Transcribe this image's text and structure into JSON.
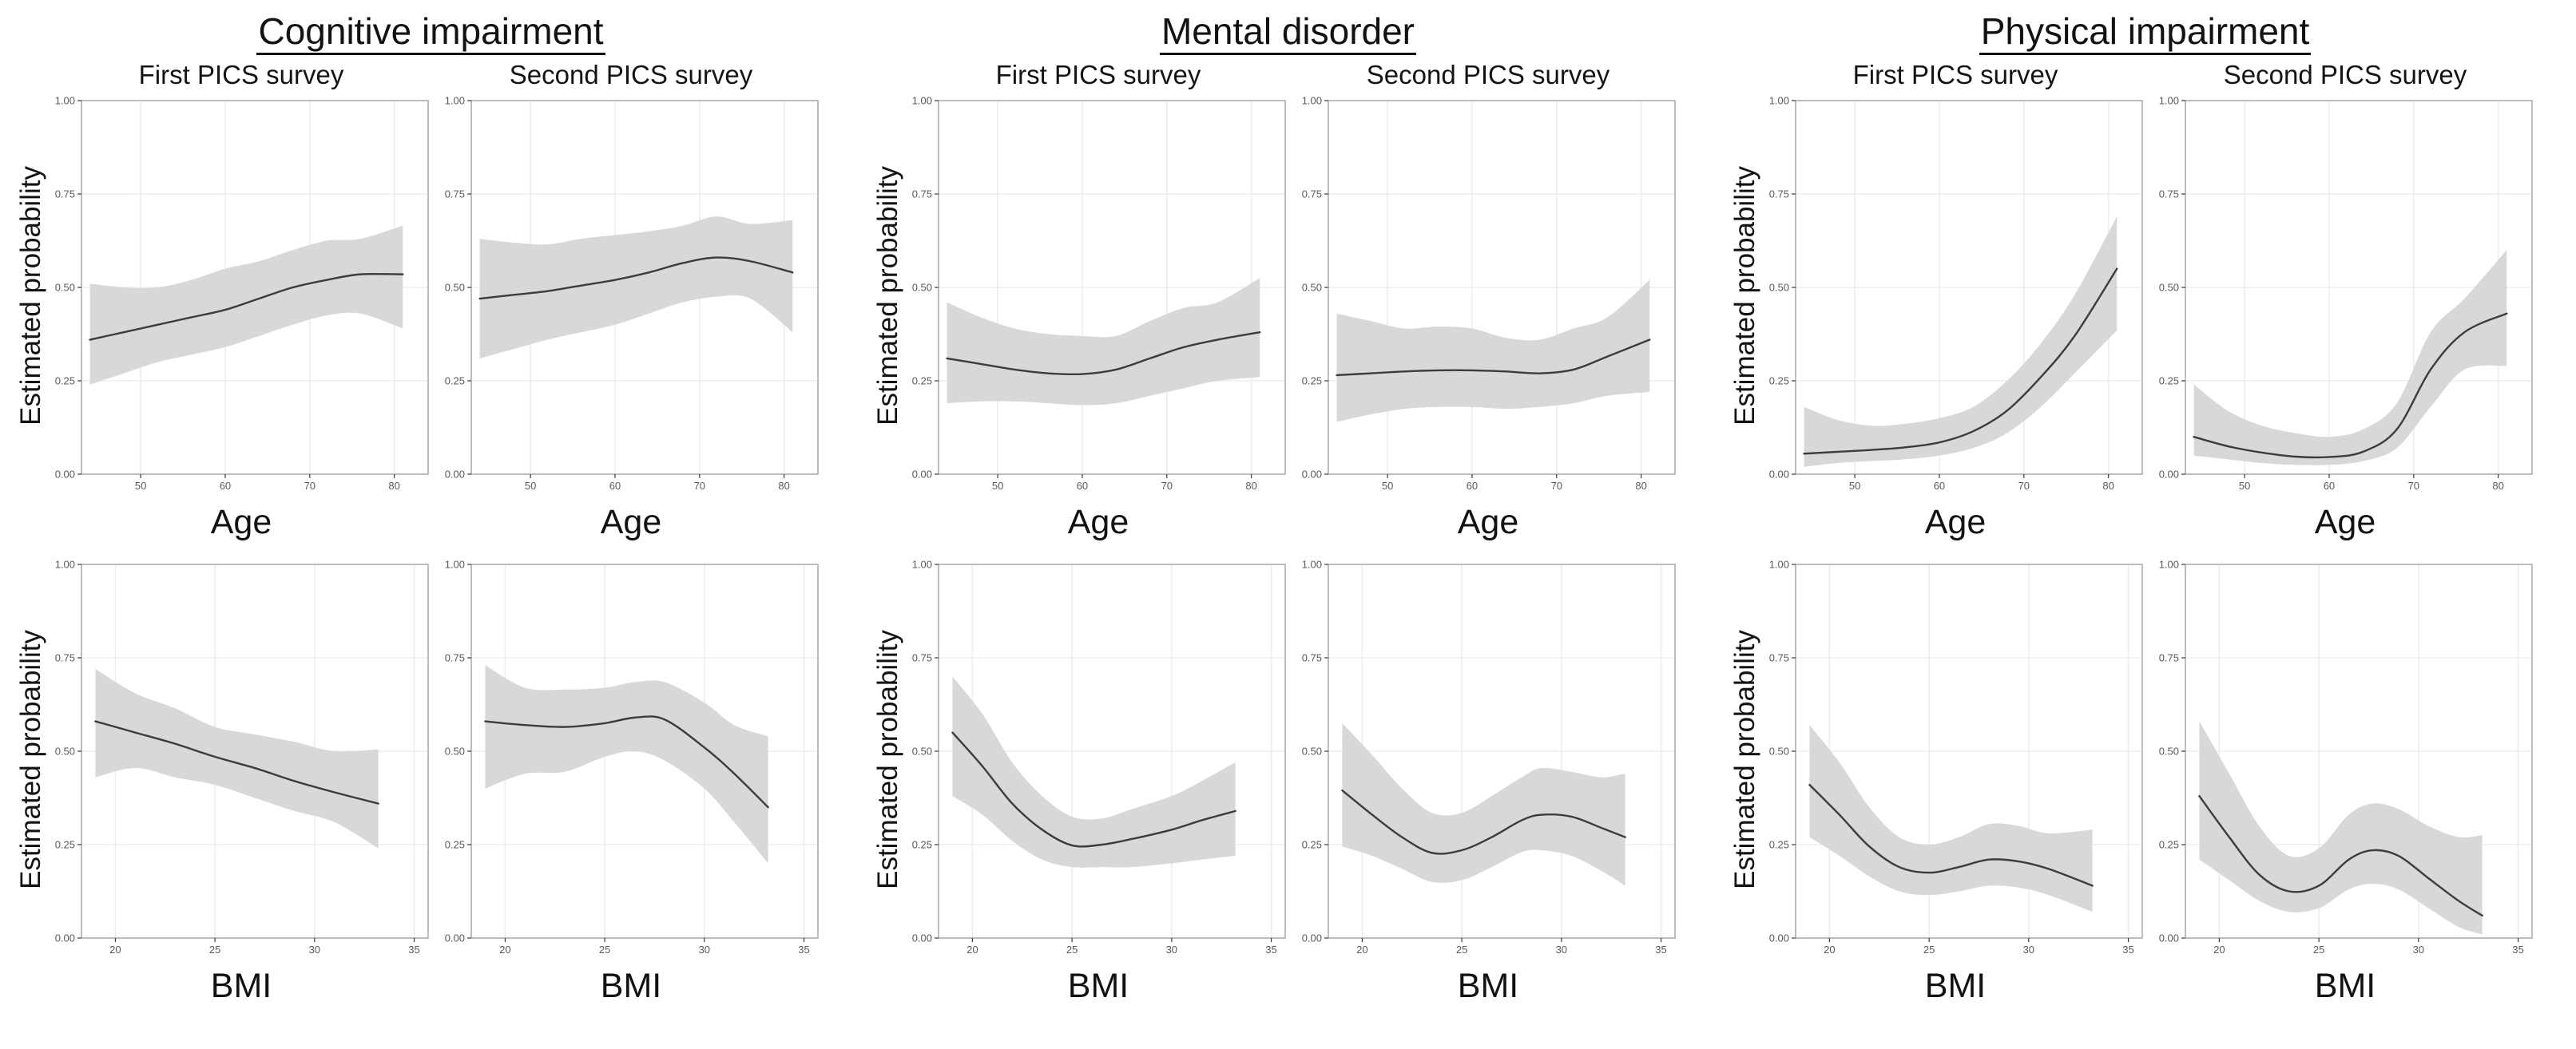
{
  "chart_data": {
    "type": "line",
    "description": "Smoothed estimated probability curves with gray confidence bands, 3 outcome groups x 2 surveys x 2 predictors",
    "y_axis": {
      "label": "Estimated probability",
      "range": [
        0,
        1
      ],
      "ticks": [
        0,
        0.25,
        0.5,
        0.75,
        1
      ],
      "tick_labels": [
        "0.00",
        "0.25",
        "0.50",
        "0.75",
        "1.00"
      ]
    },
    "age_axis": {
      "label": "Age",
      "range": [
        43,
        84
      ],
      "ticks": [
        50,
        60,
        70,
        80
      ]
    },
    "bmi_axis": {
      "label": "BMI",
      "range": [
        18.3,
        35.7
      ],
      "ticks": [
        20,
        25,
        30,
        35
      ]
    },
    "style": {
      "band_color": "#d8d8d8",
      "line_color": "#3c3c3c",
      "grid_color": "#ededed",
      "frame_color": "#a3a3a3",
      "tick_color": "#3a3a3a",
      "tick_label_color": "#5a5a5a",
      "panel_bg": "#ffffff"
    },
    "groups": [
      {
        "title": "Cognitive impairment",
        "surveys": [
          "First PICS survey",
          "Second PICS survey"
        ],
        "age": [
          {
            "x": [
              44,
              48,
              52,
              56,
              60,
              64,
              68,
              72,
              76,
              81
            ],
            "y": [
              0.36,
              0.38,
              0.4,
              0.42,
              0.44,
              0.47,
              0.5,
              0.52,
              0.535,
              0.535
            ],
            "lo": [
              0.24,
              0.27,
              0.3,
              0.32,
              0.34,
              0.37,
              0.4,
              0.425,
              0.43,
              0.39
            ],
            "hi": [
              0.51,
              0.5,
              0.5,
              0.52,
              0.55,
              0.57,
              0.6,
              0.625,
              0.63,
              0.665
            ]
          },
          {
            "x": [
              44,
              48,
              52,
              56,
              60,
              64,
              68,
              72,
              76,
              81
            ],
            "y": [
              0.47,
              0.48,
              0.49,
              0.505,
              0.52,
              0.54,
              0.565,
              0.58,
              0.57,
              0.54
            ],
            "lo": [
              0.31,
              0.335,
              0.36,
              0.38,
              0.4,
              0.43,
              0.46,
              0.475,
              0.47,
              0.38
            ],
            "hi": [
              0.63,
              0.62,
              0.615,
              0.63,
              0.64,
              0.65,
              0.665,
              0.69,
              0.67,
              0.68
            ]
          }
        ],
        "bmi": [
          {
            "x": [
              19,
              21,
              23,
              25,
              27,
              29,
              31,
              33.2
            ],
            "y": [
              0.58,
              0.55,
              0.52,
              0.485,
              0.455,
              0.42,
              0.39,
              0.36
            ],
            "lo": [
              0.43,
              0.455,
              0.43,
              0.41,
              0.375,
              0.34,
              0.31,
              0.24
            ],
            "hi": [
              0.72,
              0.655,
              0.615,
              0.565,
              0.545,
              0.525,
              0.5,
              0.505
            ]
          },
          {
            "x": [
              19,
              21,
              23,
              25,
              26.5,
              28,
              30,
              31.5,
              33.2
            ],
            "y": [
              0.58,
              0.57,
              0.565,
              0.575,
              0.59,
              0.585,
              0.51,
              0.44,
              0.35
            ],
            "lo": [
              0.4,
              0.44,
              0.445,
              0.485,
              0.5,
              0.475,
              0.4,
              0.31,
              0.2
            ],
            "hi": [
              0.73,
              0.67,
              0.665,
              0.67,
              0.685,
              0.685,
              0.63,
              0.57,
              0.54
            ]
          }
        ]
      },
      {
        "title": "Mental disorder",
        "surveys": [
          "First PICS survey",
          "Second PICS survey"
        ],
        "age": [
          {
            "x": [
              44,
              48,
              52,
              56,
              60,
              64,
              68,
              72,
              76,
              81
            ],
            "y": [
              0.31,
              0.295,
              0.28,
              0.27,
              0.268,
              0.28,
              0.31,
              0.34,
              0.36,
              0.38
            ],
            "lo": [
              0.19,
              0.195,
              0.195,
              0.19,
              0.185,
              0.19,
              0.21,
              0.23,
              0.25,
              0.26
            ],
            "hi": [
              0.46,
              0.42,
              0.39,
              0.375,
              0.37,
              0.37,
              0.41,
              0.445,
              0.46,
              0.525
            ]
          },
          {
            "x": [
              44,
              48,
              52,
              56,
              60,
              64,
              68,
              72,
              76,
              81
            ],
            "y": [
              0.265,
              0.27,
              0.275,
              0.278,
              0.278,
              0.275,
              0.27,
              0.28,
              0.315,
              0.36
            ],
            "lo": [
              0.14,
              0.16,
              0.175,
              0.18,
              0.18,
              0.175,
              0.18,
              0.19,
              0.21,
              0.22
            ],
            "hi": [
              0.43,
              0.41,
              0.39,
              0.395,
              0.39,
              0.365,
              0.36,
              0.39,
              0.42,
              0.52
            ]
          }
        ],
        "bmi": [
          {
            "x": [
              19,
              20.5,
              22,
              23.5,
              25,
              26.5,
              28,
              30,
              31.5,
              33.2
            ],
            "y": [
              0.55,
              0.46,
              0.36,
              0.29,
              0.248,
              0.25,
              0.265,
              0.29,
              0.315,
              0.34
            ],
            "lo": [
              0.38,
              0.33,
              0.26,
              0.21,
              0.19,
              0.19,
              0.19,
              0.2,
              0.21,
              0.22
            ],
            "hi": [
              0.7,
              0.6,
              0.47,
              0.38,
              0.325,
              0.32,
              0.345,
              0.38,
              0.42,
              0.47
            ]
          },
          {
            "x": [
              19,
              20.5,
              22,
              23.5,
              25,
              26.5,
              28,
              29,
              30.5,
              32,
              33.2
            ],
            "y": [
              0.395,
              0.33,
              0.27,
              0.228,
              0.235,
              0.27,
              0.315,
              0.33,
              0.325,
              0.295,
              0.27
            ],
            "lo": [
              0.245,
              0.22,
              0.185,
              0.15,
              0.155,
              0.19,
              0.23,
              0.235,
              0.22,
              0.18,
              0.14
            ],
            "hi": [
              0.575,
              0.49,
              0.4,
              0.335,
              0.335,
              0.38,
              0.43,
              0.455,
              0.445,
              0.43,
              0.44
            ]
          }
        ]
      },
      {
        "title": "Physical impairment",
        "surveys": [
          "First PICS survey",
          "Second PICS survey"
        ],
        "age": [
          {
            "x": [
              44,
              48,
              52,
              56,
              60,
              64,
              68,
              72,
              76,
              81
            ],
            "y": [
              0.055,
              0.06,
              0.065,
              0.072,
              0.085,
              0.115,
              0.17,
              0.26,
              0.37,
              0.55
            ],
            "lo": [
              0.02,
              0.03,
              0.035,
              0.04,
              0.05,
              0.07,
              0.11,
              0.18,
              0.27,
              0.385
            ],
            "hi": [
              0.18,
              0.145,
              0.13,
              0.135,
              0.15,
              0.18,
              0.25,
              0.35,
              0.48,
              0.69
            ]
          },
          {
            "x": [
              44,
              48,
              52,
              56,
              60,
              64,
              68,
              72,
              76,
              81
            ],
            "y": [
              0.1,
              0.075,
              0.058,
              0.047,
              0.046,
              0.06,
              0.12,
              0.28,
              0.38,
              0.43
            ],
            "lo": [
              0.05,
              0.04,
              0.03,
              0.025,
              0.025,
              0.035,
              0.07,
              0.18,
              0.28,
              0.29
            ],
            "hi": [
              0.24,
              0.17,
              0.13,
              0.11,
              0.1,
              0.12,
              0.19,
              0.38,
              0.47,
              0.6
            ]
          }
        ],
        "bmi": [
          {
            "x": [
              19,
              20.5,
              22,
              23.5,
              25,
              26.5,
              28,
              29.5,
              31,
              33.2
            ],
            "y": [
              0.41,
              0.33,
              0.245,
              0.19,
              0.175,
              0.19,
              0.21,
              0.205,
              0.185,
              0.14
            ],
            "lo": [
              0.27,
              0.22,
              0.165,
              0.125,
              0.115,
              0.125,
              0.14,
              0.135,
              0.115,
              0.07
            ],
            "hi": [
              0.57,
              0.47,
              0.35,
              0.27,
              0.25,
              0.27,
              0.305,
              0.3,
              0.28,
              0.29
            ]
          },
          {
            "x": [
              19,
              20.5,
              22,
              23.5,
              25,
              26.5,
              27.7,
              29,
              30.5,
              32,
              33.2
            ],
            "y": [
              0.38,
              0.27,
              0.17,
              0.125,
              0.14,
              0.21,
              0.235,
              0.22,
              0.16,
              0.1,
              0.06
            ],
            "lo": [
              0.21,
              0.155,
              0.1,
              0.07,
              0.08,
              0.13,
              0.145,
              0.13,
              0.08,
              0.03,
              0.01
            ],
            "hi": [
              0.58,
              0.44,
              0.3,
              0.22,
              0.24,
              0.33,
              0.36,
              0.345,
              0.3,
              0.27,
              0.275
            ]
          }
        ]
      }
    ]
  }
}
